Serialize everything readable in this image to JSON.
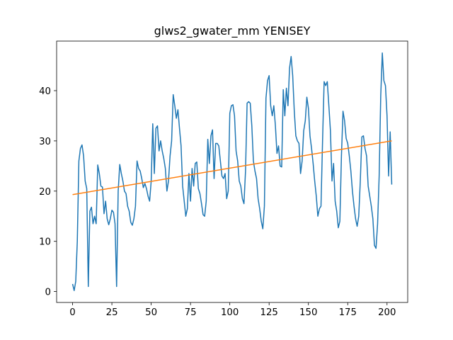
{
  "chart_data": {
    "type": "line",
    "title": "glws2_gwater_mm YENISEY",
    "x": [
      0,
      1,
      2,
      3,
      4,
      5,
      6,
      7,
      8,
      9,
      10,
      11,
      12,
      13,
      14,
      15,
      16,
      17,
      18,
      19,
      20,
      21,
      22,
      23,
      24,
      25,
      26,
      27,
      28,
      29,
      30,
      31,
      32,
      33,
      34,
      35,
      36,
      37,
      38,
      39,
      40,
      41,
      42,
      43,
      44,
      45,
      46,
      47,
      48,
      49,
      50,
      51,
      52,
      53,
      54,
      55,
      56,
      57,
      58,
      59,
      60,
      61,
      62,
      63,
      64,
      65,
      66,
      67,
      68,
      69,
      70,
      71,
      72,
      73,
      74,
      75,
      76,
      77,
      78,
      79,
      80,
      81,
      82,
      83,
      84,
      85,
      86,
      87,
      88,
      89,
      90,
      91,
      92,
      93,
      94,
      95,
      96,
      97,
      98,
      99,
      100,
      101,
      102,
      103,
      104,
      105,
      106,
      107,
      108,
      109,
      110,
      111,
      112,
      113,
      114,
      115,
      116,
      117,
      118,
      119,
      120,
      121,
      122,
      123,
      124,
      125,
      126,
      127,
      128,
      129,
      130,
      131,
      132,
      133,
      134,
      135,
      136,
      137,
      138,
      139,
      140,
      141,
      142,
      143,
      144,
      145,
      146,
      147,
      148,
      149,
      150,
      151,
      152,
      153,
      154,
      155,
      156,
      157,
      158,
      159,
      160,
      161,
      162,
      163,
      164,
      165,
      166,
      167,
      168,
      169,
      170,
      171,
      172,
      173,
      174,
      175,
      176,
      177,
      178,
      179,
      180,
      181,
      182,
      183,
      184,
      185,
      186,
      187,
      188,
      189,
      190,
      191,
      192,
      193,
      194,
      195,
      196,
      197,
      198,
      199,
      200,
      201,
      202,
      203
    ],
    "series": [
      {
        "color": "#1f77b4",
        "values": [
          1.5,
          0.2,
          2,
          10,
          26,
          28.5,
          29.2,
          27,
          22,
          20.5,
          1,
          16,
          16.8,
          13.5,
          15,
          13.5,
          25.2,
          23.5,
          21,
          20.8,
          15.5,
          18,
          14.5,
          13.3,
          14.5,
          16.2,
          15.8,
          13.5,
          1,
          20,
          25.3,
          23.5,
          22,
          20,
          19.5,
          17,
          16,
          13.8,
          13.2,
          14.5,
          17,
          26,
          24.5,
          24,
          22.5,
          20.7,
          21.5,
          20.5,
          19,
          18,
          22,
          33.4,
          23.5,
          32.5,
          33,
          28,
          30,
          28,
          26.5,
          24.5,
          20,
          22,
          27,
          30,
          39.2,
          37,
          34.5,
          36.2,
          32.5,
          29,
          21,
          18,
          15,
          16.5,
          23.5,
          18,
          24.5,
          21,
          25.5,
          25.8,
          20.5,
          19.5,
          17.5,
          15.3,
          15,
          18,
          30.3,
          25.5,
          31,
          32.2,
          22.5,
          29.5,
          29.5,
          29,
          26,
          23,
          22.5,
          23.5,
          18.5,
          20,
          35.5,
          37,
          37.2,
          35,
          28,
          26,
          22,
          21,
          18.5,
          17.5,
          24,
          37.5,
          37.8,
          37.5,
          33,
          26,
          24,
          22.5,
          18.5,
          16.5,
          14,
          12.5,
          17,
          38.5,
          42,
          43,
          37,
          35,
          37,
          33,
          27.5,
          29,
          25,
          24.8,
          40.2,
          35,
          40.5,
          37,
          44.5,
          46.8,
          43,
          36,
          31,
          30,
          29.5,
          23.5,
          26,
          32,
          34,
          38.7,
          36.5,
          31,
          28.5,
          25.5,
          22,
          19,
          15,
          16.5,
          17,
          30,
          41.8,
          41,
          41.8,
          37,
          32,
          22,
          25.5,
          18,
          16,
          12.7,
          14,
          27,
          35.9,
          34,
          30.5,
          29.5,
          27,
          24,
          20,
          17,
          14.5,
          13,
          15,
          22,
          30.8,
          31,
          28.5,
          27,
          21,
          19,
          17,
          14.5,
          9.2,
          8.6,
          13.5,
          23,
          39,
          47.5,
          42,
          41,
          35,
          23,
          31.8,
          21.3
        ]
      },
      {
        "color": "#ff7f0e",
        "x": [
          0,
          203
        ],
        "values": [
          19.3,
          30.0
        ]
      }
    ],
    "xlim": [
      -10.15,
      213.15
    ],
    "ylim": [
      -2.17,
      49.87
    ],
    "xticks": [
      0,
      25,
      50,
      75,
      100,
      125,
      150,
      175,
      200
    ],
    "yticks": [
      0,
      10,
      20,
      30,
      40
    ]
  }
}
